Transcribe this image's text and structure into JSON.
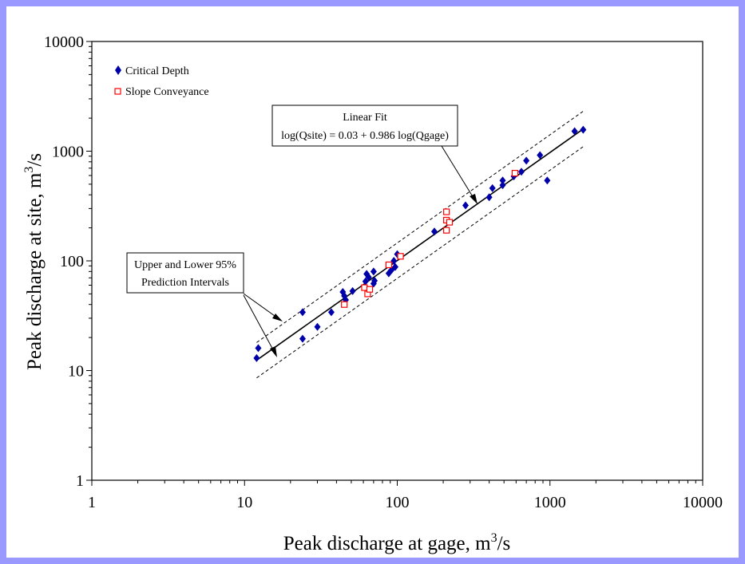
{
  "chart_data": {
    "type": "scatter",
    "xlabel": "Peak discharge at gage, m",
    "xlabel_sup": "3",
    "xlabel_suffix": "/s",
    "ylabel": "Peak discharge at site, m",
    "ylabel_sup": "3",
    "ylabel_suffix": "/s",
    "x_scale": "log",
    "y_scale": "log",
    "xlim": [
      1,
      10000
    ],
    "ylim": [
      1,
      10000
    ],
    "x_ticks": [
      "1",
      "10",
      "100",
      "1000",
      "10000"
    ],
    "y_ticks": [
      "1",
      "10",
      "100",
      "1000",
      "10000"
    ],
    "grid": false,
    "legend_position": "top-left",
    "series": [
      {
        "name": "Critical Depth",
        "marker": "diamond",
        "color": "#0000aa",
        "points": [
          [
            12,
            13
          ],
          [
            12.3,
            16
          ],
          [
            24,
            34
          ],
          [
            24,
            19.5
          ],
          [
            30,
            25
          ],
          [
            37,
            34
          ],
          [
            44,
            52
          ],
          [
            45,
            48
          ],
          [
            46,
            44
          ],
          [
            51,
            53
          ],
          [
            62,
            65
          ],
          [
            63,
            76
          ],
          [
            65,
            71
          ],
          [
            70,
            80
          ],
          [
            70,
            62
          ],
          [
            71,
            66
          ],
          [
            88,
            77
          ],
          [
            92,
            83
          ],
          [
            95,
            100
          ],
          [
            97,
            88
          ],
          [
            100,
            115
          ],
          [
            175,
            185
          ],
          [
            280,
            320
          ],
          [
            400,
            380
          ],
          [
            420,
            460
          ],
          [
            490,
            490
          ],
          [
            490,
            540
          ],
          [
            580,
            590
          ],
          [
            650,
            650
          ],
          [
            700,
            820
          ],
          [
            860,
            920
          ],
          [
            960,
            540
          ],
          [
            1450,
            1520
          ],
          [
            1650,
            1570
          ]
        ]
      },
      {
        "name": "Slope Conveyance",
        "marker": "square",
        "color": "#ff0000",
        "points": [
          [
            45,
            40
          ],
          [
            61,
            57
          ],
          [
            64,
            50
          ],
          [
            66,
            55
          ],
          [
            88,
            92
          ],
          [
            105,
            110
          ],
          [
            210,
            280
          ],
          [
            210,
            235
          ],
          [
            210,
            190
          ],
          [
            220,
            225
          ],
          [
            590,
            630
          ]
        ]
      }
    ],
    "fit_line": {
      "x0": 12,
      "x1": 1650
    },
    "prediction_band_factor": 1.45,
    "annotations": {
      "fit_title": "Linear Fit",
      "fit_equation": "log(Qsite) = 0.03 + 0.986 log(Qgage)",
      "pi_line1": "Upper and Lower 95%",
      "pi_line2": "Prediction Intervals"
    }
  }
}
